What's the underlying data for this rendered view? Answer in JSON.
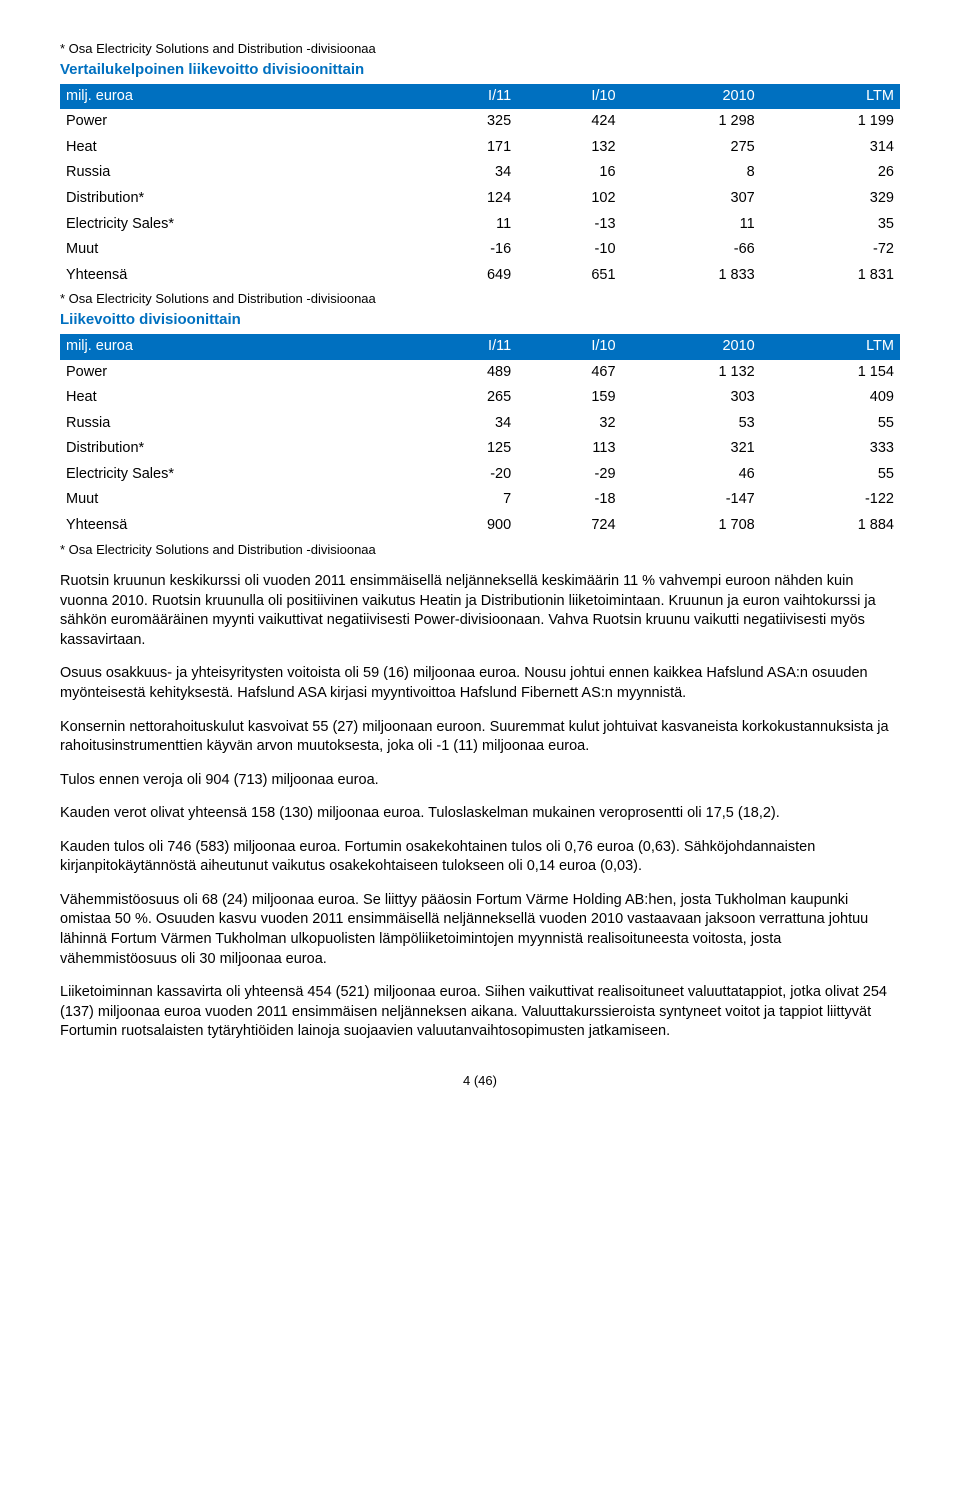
{
  "footnote": "* Osa Electricity Solutions and Distribution -divisioonaa",
  "table1": {
    "title": "Vertailukelpoinen liikevoitto divisioonittain",
    "headerRowLabel": "milj. euroa",
    "cols": [
      "I/11",
      "I/10",
      "2010",
      "LTM"
    ],
    "rows": [
      {
        "label": "Power",
        "v": [
          "325",
          "424",
          "1 298",
          "1 199"
        ]
      },
      {
        "label": "Heat",
        "v": [
          "171",
          "132",
          "275",
          "314"
        ]
      },
      {
        "label": "Russia",
        "v": [
          "34",
          "16",
          "8",
          "26"
        ]
      },
      {
        "label": "Distribution*",
        "v": [
          "124",
          "102",
          "307",
          "329"
        ]
      },
      {
        "label": "Electricity Sales*",
        "v": [
          "11",
          "-13",
          "11",
          "35"
        ]
      },
      {
        "label": "Muut",
        "v": [
          "-16",
          "-10",
          "-66",
          "-72"
        ]
      },
      {
        "label": "Yhteensä",
        "v": [
          "649",
          "651",
          "1 833",
          "1 831"
        ]
      }
    ]
  },
  "table2": {
    "title": "Liikevoitto divisioonittain",
    "headerRowLabel": "milj. euroa",
    "cols": [
      "I/11",
      "I/10",
      "2010",
      "LTM"
    ],
    "rows": [
      {
        "label": "Power",
        "v": [
          "489",
          "467",
          "1 132",
          "1 154"
        ]
      },
      {
        "label": "Heat",
        "v": [
          "265",
          "159",
          "303",
          "409"
        ]
      },
      {
        "label": "Russia",
        "v": [
          "34",
          "32",
          "53",
          "55"
        ]
      },
      {
        "label": "Distribution*",
        "v": [
          "125",
          "113",
          "321",
          "333"
        ]
      },
      {
        "label": "Electricity Sales*",
        "v": [
          "-20",
          "-29",
          "46",
          "55"
        ]
      },
      {
        "label": "Muut",
        "v": [
          "7",
          "-18",
          "-147",
          "-122"
        ]
      },
      {
        "label": "Yhteensä",
        "v": [
          "900",
          "724",
          "1 708",
          "1 884"
        ]
      }
    ]
  },
  "paragraphs": [
    "Ruotsin kruunun keskikurssi oli vuoden 2011 ensimmäisellä neljänneksellä keskimäärin 11 % vahvempi euroon nähden kuin vuonna 2010. Ruotsin kruunulla oli positiivinen vaikutus Heatin ja Distributionin liiketoimintaan. Kruunun ja euron vaihtokurssi ja sähkön euromääräinen myynti vaikuttivat negatiivisesti Power-divisioonaan. Vahva Ruotsin kruunu vaikutti negatiivisesti myös kassavirtaan.",
    "Osuus osakkuus- ja yhteisyritysten voitoista oli 59 (16) miljoonaa euroa. Nousu johtui ennen kaikkea Hafslund ASA:n osuuden myönteisestä kehityksestä. Hafslund ASA kirjasi myyntivoittoa Hafslund Fibernett AS:n myynnistä.",
    "Konsernin nettorahoituskulut kasvoivat 55 (27) miljoonaan euroon. Suuremmat kulut johtuivat kasvaneista korkokustannuksista ja rahoitusinstrumenttien käyvän arvon muutoksesta, joka oli -1 (11) miljoonaa euroa.",
    "Tulos ennen veroja oli 904 (713) miljoonaa euroa.",
    "Kauden verot olivat yhteensä 158 (130) miljoonaa euroa. Tuloslaskelman mukainen veroprosentti oli 17,5 (18,2).",
    "Kauden tulos oli 746 (583) miljoonaa euroa. Fortumin osakekohtainen tulos oli 0,76 euroa (0,63). Sähköjohdannaisten kirjanpitokäytännöstä aiheutunut vaikutus osakekohtaiseen tulokseen oli 0,14 euroa (0,03).",
    "Vähemmistöosuus oli 68 (24) miljoonaa euroa. Se liittyy pääosin Fortum Värme Holding AB:hen, josta Tukholman kaupunki omistaa 50 %. Osuuden kasvu vuoden 2011 ensimmäisellä neljänneksellä vuoden 2010 vastaavaan jaksoon verrattuna johtuu lähinnä Fortum Värmen Tukholman ulkopuolisten lämpöliiketoimintojen myynnistä realisoituneesta voitosta, josta vähemmistöosuus oli 30 miljoonaa euroa.",
    "Liiketoiminnan kassavirta oli yhteensä 454 (521) miljoonaa euroa. Siihen vaikuttivat realisoituneet valuuttatappiot, jotka olivat 254 (137) miljoonaa euroa vuoden 2011 ensimmäisen neljänneksen aikana. Valuuttakurssieroista syntyneet voitot ja tappiot liittyvät Fortumin ruotsalaisten tytäryhtiöiden lainoja suojaavien valuutanvaihtosopimusten jatkamiseen."
  ],
  "pageNumber": "4 (46)"
}
